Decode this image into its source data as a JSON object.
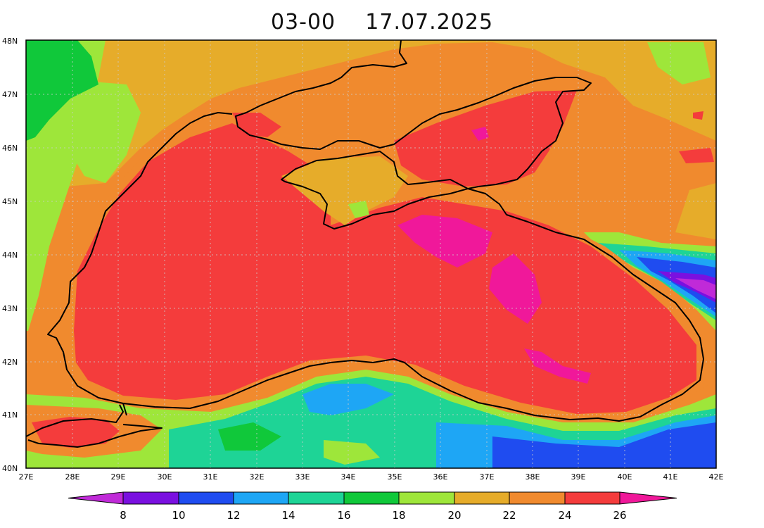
{
  "title": "03-00    17.07.2025",
  "map": {
    "lat_labels": [
      "48N",
      "47N",
      "46N",
      "45N",
      "44N",
      "43N",
      "42N",
      "41N",
      "40N"
    ],
    "lon_labels": [
      "27E",
      "28E",
      "29E",
      "30E",
      "31E",
      "32E",
      "33E",
      "34E",
      "35E",
      "36E",
      "37E",
      "38E",
      "39E",
      "40E",
      "41E",
      "42E"
    ]
  },
  "colorbar": {
    "ticks": [
      "8",
      "10",
      "12",
      "14",
      "16",
      "18",
      "20",
      "22",
      "24",
      "26"
    ],
    "colors": [
      "#c02ad8",
      "#7a10e0",
      "#1f4cf0",
      "#1ea6f5",
      "#1ed496",
      "#10c83a",
      "#9ee63a",
      "#e6ac2a",
      "#f08a2e",
      "#f43c3c",
      "#f0189a"
    ]
  },
  "palette": {
    "t8": "#c02ad8",
    "t10": "#7a10e0",
    "t12": "#1f4cf0",
    "t14": "#1ea6f5",
    "t16": "#1ed496",
    "t18": "#10c83a",
    "t20": "#9ee63a",
    "t22": "#e6ac2a",
    "t24": "#f08a2e",
    "t26": "#f43c3c",
    "t28": "#f0189a"
  }
}
